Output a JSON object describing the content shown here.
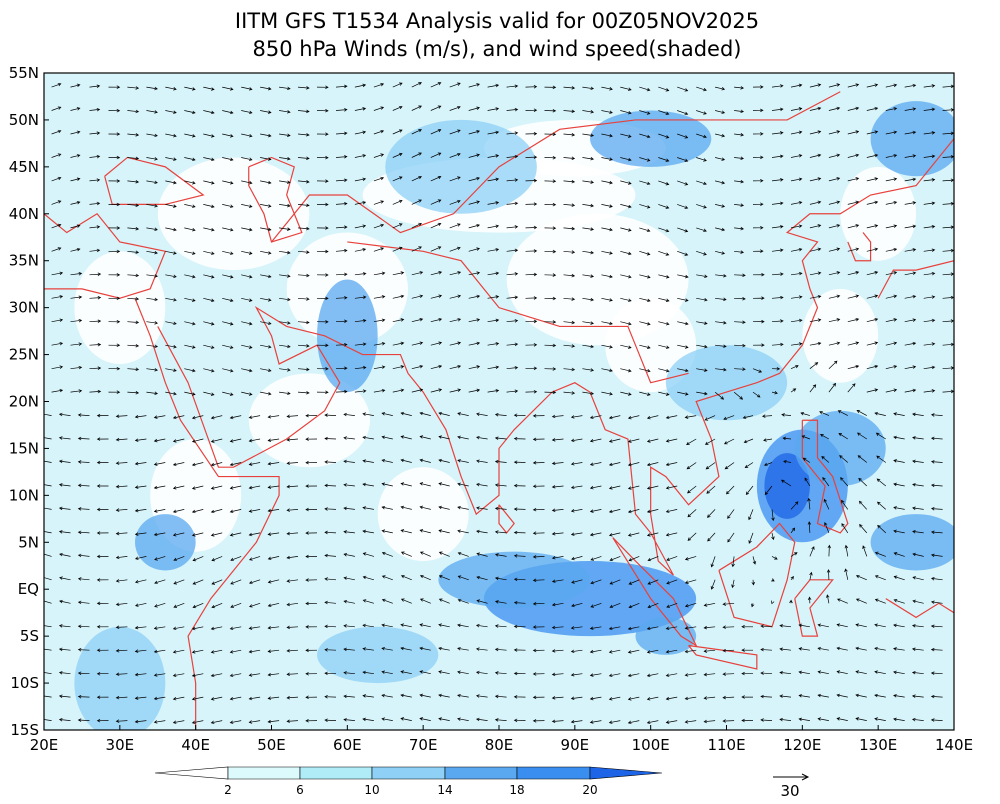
{
  "header": {
    "title": "IITM GFS T1534 Analysis valid for 00Z05NOV2025",
    "subtitle": "850 hPa Winds (m/s), and wind speed(shaded)"
  },
  "map": {
    "lat_labels": [
      "55N",
      "50N",
      "45N",
      "40N",
      "35N",
      "30N",
      "25N",
      "20N",
      "15N",
      "10N",
      "5N",
      "EQ",
      "5S",
      "10S",
      "15S"
    ],
    "lon_labels": [
      "20E",
      "30E",
      "40E",
      "50E",
      "60E",
      "70E",
      "80E",
      "90E",
      "100E",
      "110E",
      "120E",
      "130E",
      "140E"
    ]
  },
  "colorbar": {
    "labels": [
      "2",
      "6",
      "10",
      "14",
      "18",
      "20"
    ],
    "colors": [
      "#ffffff",
      "#dcfafc",
      "#b0ecf8",
      "#8ed0f6",
      "#5aa8f0",
      "#3a8ef0",
      "#1e64e6"
    ]
  },
  "reference_vector": {
    "label": "30"
  }
}
